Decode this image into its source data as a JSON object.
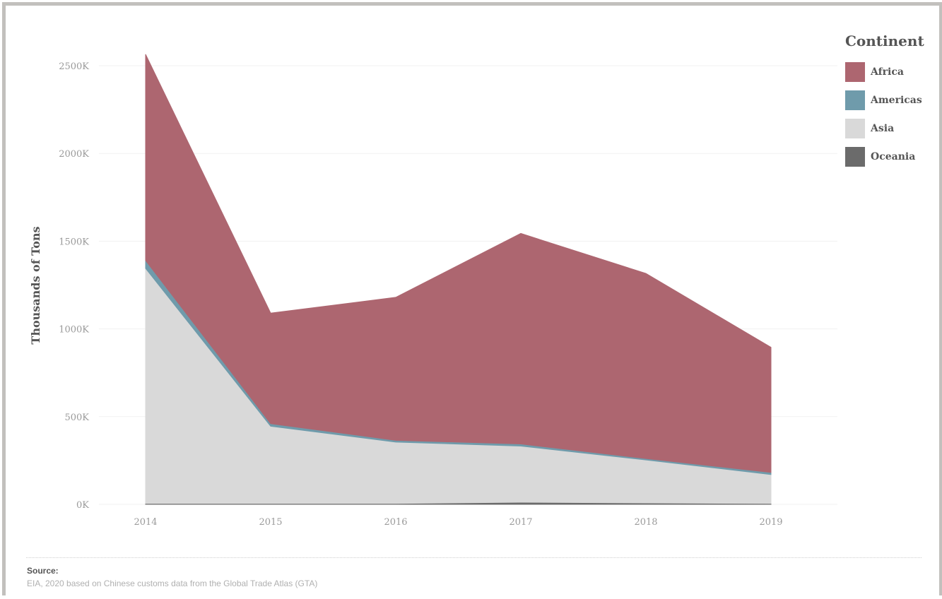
{
  "chart_data": {
    "type": "area",
    "stacked": true,
    "x": [
      "2014",
      "2015",
      "2016",
      "2017",
      "2018",
      "2019"
    ],
    "ylabel": "Thousands of Tons",
    "ylim": [
      0,
      2500
    ],
    "yticks": [
      0,
      500,
      1000,
      1500,
      2000,
      2500
    ],
    "ytick_labels": [
      "0K",
      "500K",
      "1000K",
      "1500K",
      "2000K",
      "2500K"
    ],
    "grid": true,
    "legend": {
      "title": "Continent",
      "placement": "top-right"
    },
    "series": [
      {
        "name": "Oceania",
        "color": "#6b6b6b",
        "values": [
          5,
          5,
          5,
          12,
          8,
          5
        ]
      },
      {
        "name": "Asia",
        "color": "#d9d9d9",
        "values": [
          1340,
          440,
          350,
          320,
          245,
          165
        ]
      },
      {
        "name": "Americas",
        "color": "#6f9bab",
        "values": [
          45,
          15,
          10,
          12,
          8,
          12
        ]
      },
      {
        "name": "Africa",
        "color": "#ad6670",
        "values": [
          1175,
          630,
          815,
          1200,
          1055,
          713
        ]
      }
    ],
    "legend_order": [
      "Africa",
      "Americas",
      "Asia",
      "Oceania"
    ]
  },
  "source": {
    "label": "Source:",
    "text": "EIA, 2020 based on Chinese customs data from the Global Trade Atlas (GTA)"
  }
}
